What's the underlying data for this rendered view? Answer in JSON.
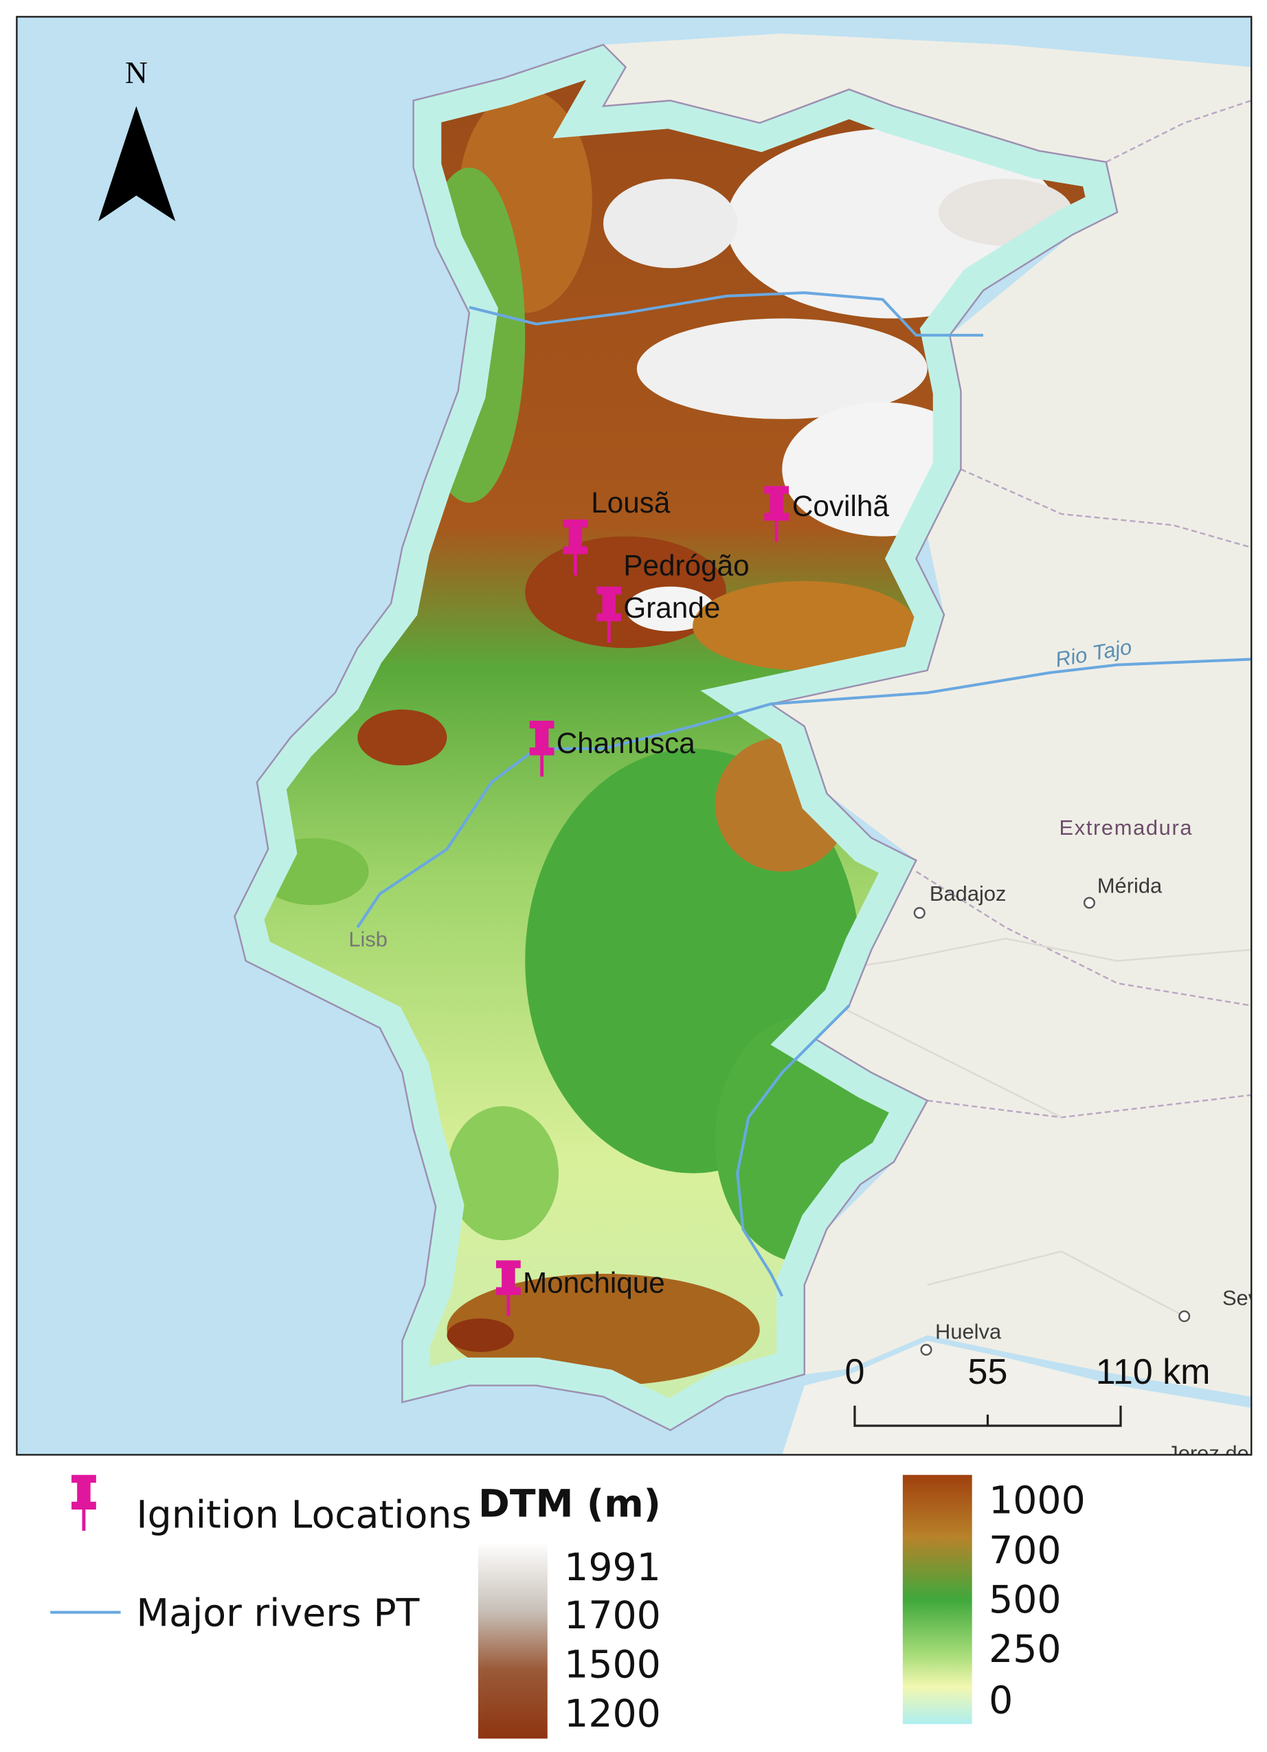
{
  "map": {
    "north_label": "N",
    "ignitions": [
      {
        "label": "Lousã"
      },
      {
        "label": "Covilhã"
      },
      {
        "label_lines": [
          "Pedrógão",
          "Grande"
        ]
      },
      {
        "label": "Chamusca"
      },
      {
        "label": "Monchique"
      }
    ],
    "basemap_labels": [
      "Rio Tajo",
      "Extremadura",
      "Badajoz",
      "Mérida",
      "Huelva",
      "Sevill",
      "Jerez de",
      "Lisb"
    ],
    "scale_bar": [
      "0",
      "55",
      "110 km"
    ]
  },
  "legend": {
    "ignition": "Ignition Locations",
    "rivers": "Major rivers PT",
    "dtm_title": "DTM (m)",
    "dtm_high": [
      "1991",
      "1700",
      "1500",
      "1200"
    ],
    "dtm_low": [
      "1000",
      "700",
      "500",
      "250",
      "0"
    ]
  }
}
